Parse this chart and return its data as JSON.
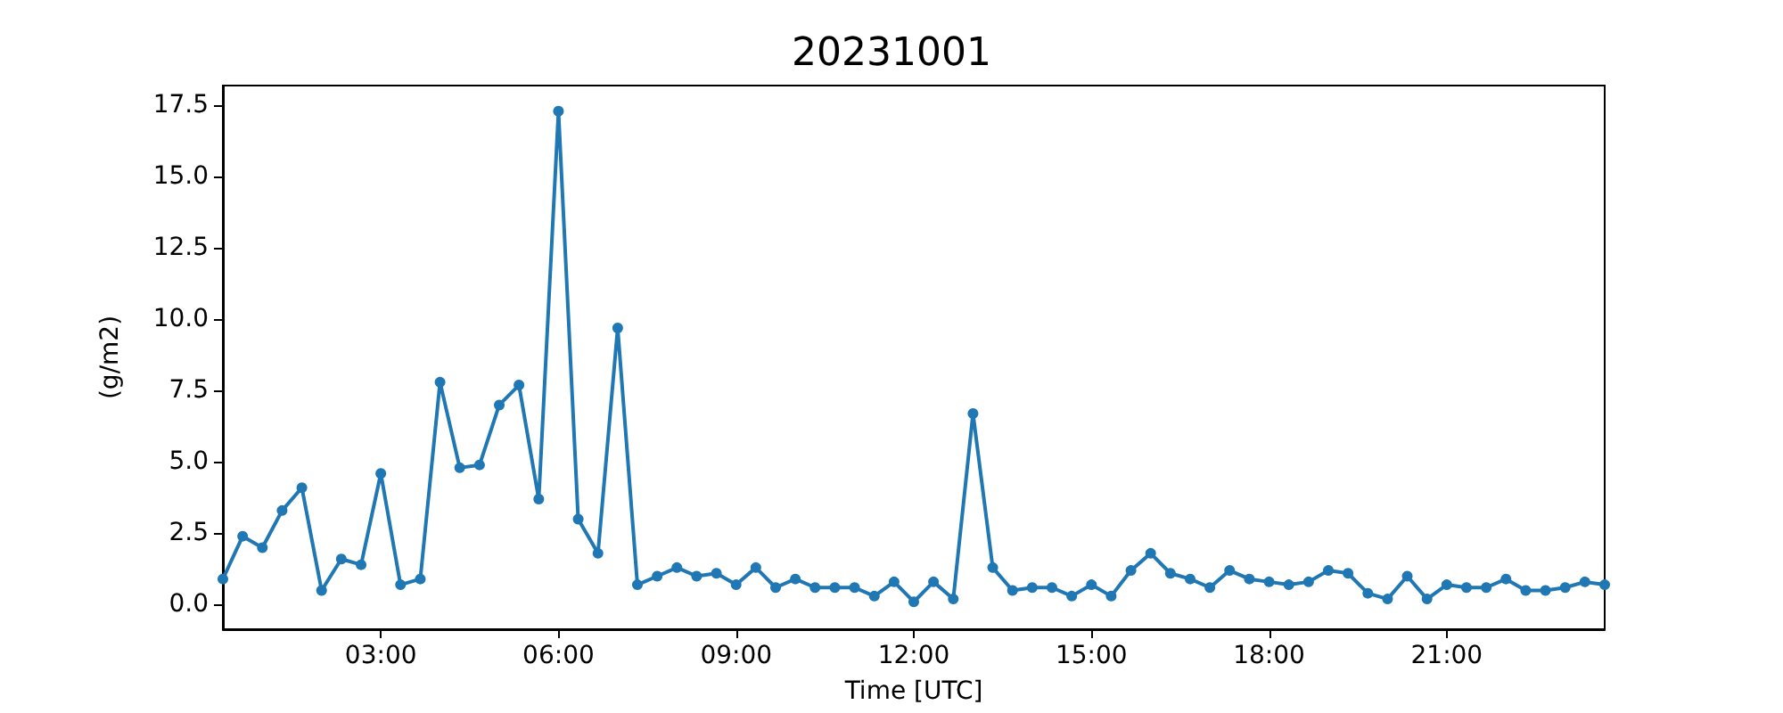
{
  "chart_data": {
    "type": "line",
    "title": "20231001",
    "xlabel": "Time [UTC]",
    "ylabel": "(g/m2)",
    "x": [
      0.333,
      0.667,
      1,
      1.333,
      1.667,
      2,
      2.333,
      2.667,
      3,
      3.333,
      3.667,
      4,
      4.333,
      4.667,
      5,
      5.333,
      5.667,
      6,
      6.333,
      6.667,
      7,
      7.333,
      7.667,
      8,
      8.333,
      8.667,
      9,
      9.333,
      9.667,
      10,
      10.333,
      10.667,
      11,
      11.333,
      11.667,
      12,
      12.333,
      12.667,
      13,
      13.333,
      13.667,
      14,
      14.333,
      14.667,
      15,
      15.333,
      15.667,
      16,
      16.333,
      16.667,
      17,
      17.333,
      17.667,
      18,
      18.333,
      18.667,
      19,
      19.333,
      19.667,
      20,
      20.333,
      20.667,
      21,
      21.333,
      21.667,
      22,
      22.333,
      22.667,
      23,
      23.333,
      23.667
    ],
    "series": [
      {
        "color": "#1f77b4",
        "values": [
          0.9,
          2.4,
          2.0,
          3.3,
          4.1,
          0.5,
          1.6,
          1.4,
          4.6,
          0.7,
          0.9,
          7.8,
          4.8,
          4.9,
          7.0,
          7.7,
          3.7,
          17.3,
          3.0,
          1.8,
          9.7,
          0.7,
          1.0,
          1.3,
          1.0,
          1.1,
          0.7,
          1.3,
          0.6,
          0.9,
          0.6,
          0.6,
          0.6,
          0.3,
          0.8,
          0.1,
          0.8,
          0.2,
          6.7,
          1.3,
          0.5,
          0.6,
          0.6,
          0.3,
          0.7,
          0.3,
          1.2,
          1.8,
          1.1,
          0.9,
          0.6,
          1.2,
          0.9,
          0.8,
          0.7,
          0.8,
          1.2,
          1.1,
          0.4,
          0.2,
          1.0,
          0.2,
          0.7,
          0.6,
          0.6,
          0.9,
          0.5,
          0.5,
          0.6,
          0.8,
          0.7
        ]
      }
    ],
    "xlim": [
      0.333,
      23.667
    ],
    "xticks": [
      {
        "value": 3,
        "label": "03:00"
      },
      {
        "value": 6,
        "label": "06:00"
      },
      {
        "value": 9,
        "label": "09:00"
      },
      {
        "value": 12,
        "label": "12:00"
      },
      {
        "value": 15,
        "label": "15:00"
      },
      {
        "value": 18,
        "label": "18:00"
      },
      {
        "value": 21,
        "label": "21:00"
      }
    ],
    "ylim": [
      -0.86,
      18.2
    ],
    "yticks": [
      {
        "value": 0,
        "label": "0.0"
      },
      2.5,
      {
        "value": 5,
        "label": "5.0"
      },
      7.5,
      {
        "value": 10,
        "label": "10.0"
      },
      12.5,
      {
        "value": 15,
        "label": "15.0"
      },
      17.5
    ],
    "grid": false,
    "marker": "circle",
    "line_style": "solid"
  }
}
